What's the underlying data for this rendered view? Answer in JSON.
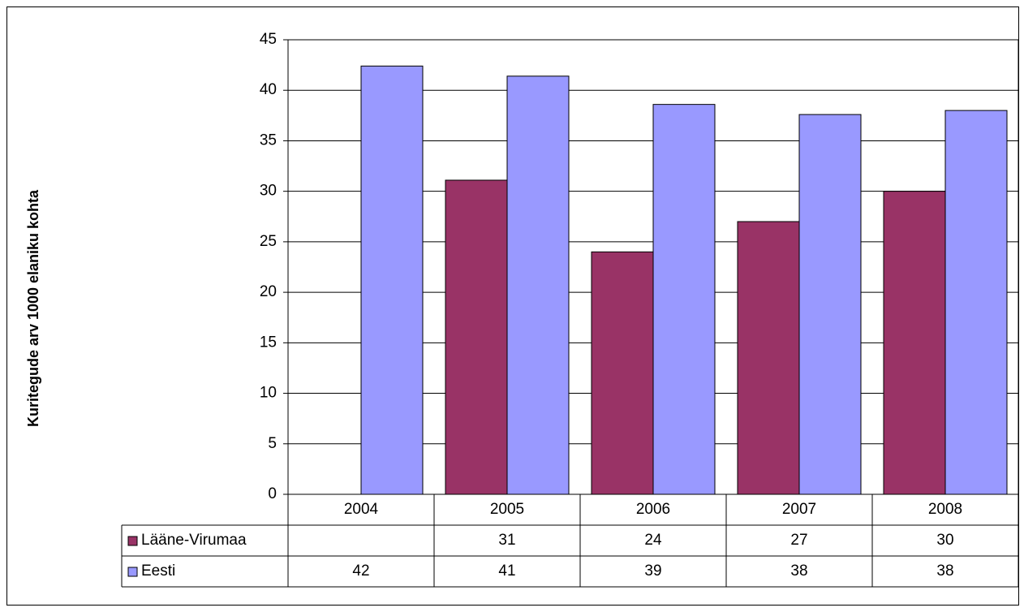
{
  "chart_data": {
    "type": "bar",
    "ylabel": "Kuritegude arv 1000 elaniku kohta",
    "categories": [
      "2004",
      "2005",
      "2006",
      "2007",
      "2008"
    ],
    "series": [
      {
        "name": "Lääne-Virumaa",
        "color": "#993366",
        "values": [
          null,
          31.1,
          24,
          27,
          30
        ],
        "value_labels": [
          null,
          "31",
          "24",
          "27",
          "30"
        ]
      },
      {
        "name": "Eesti",
        "color": "#9999ff",
        "values": [
          42.4,
          41.4,
          38.6,
          37.6,
          38.0
        ],
        "value_labels": [
          "42",
          "41",
          "39",
          "38",
          "38"
        ]
      }
    ],
    "ylim": [
      0,
      45
    ],
    "yticks": [
      0,
      5,
      10,
      15,
      20,
      25,
      30,
      35,
      40,
      45
    ],
    "grid": true
  }
}
